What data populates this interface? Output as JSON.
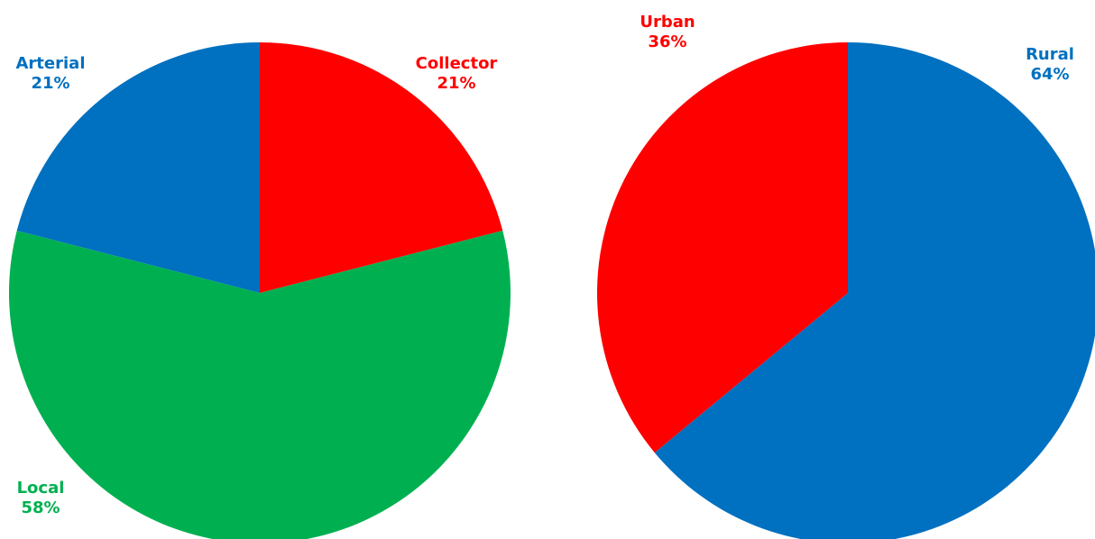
{
  "chart_data": [
    {
      "type": "pie",
      "title": "",
      "start_angle_deg": 0,
      "direction": "clockwise",
      "slices": [
        {
          "label": "Collector",
          "value": 21,
          "value_label": "21%",
          "color": "#ff0000"
        },
        {
          "label": "Local",
          "value": 58,
          "value_label": "58%",
          "color": "#00b050"
        },
        {
          "label": "Arterial",
          "value": 21,
          "value_label": "21%",
          "color": "#0070c0"
        }
      ]
    },
    {
      "type": "pie",
      "title": "",
      "start_angle_deg": 0,
      "direction": "clockwise",
      "slices": [
        {
          "label": "Rural",
          "value": 64,
          "value_label": "64%",
          "color": "#0070c0"
        },
        {
          "label": "Urban",
          "value": 36,
          "value_label": "36%",
          "color": "#ff0000"
        }
      ]
    }
  ]
}
